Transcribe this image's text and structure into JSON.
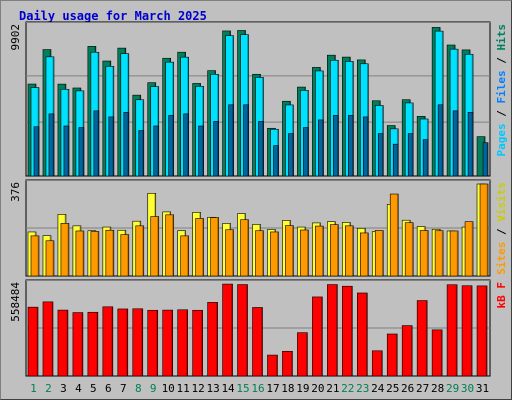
{
  "chart_data": {
    "type": "bar",
    "title": "Daily usage for March 2025",
    "days": [
      "1",
      "2",
      "3",
      "4",
      "5",
      "6",
      "7",
      "8",
      "9",
      "10",
      "11",
      "12",
      "13",
      "14",
      "15",
      "16",
      "17",
      "18",
      "19",
      "20",
      "21",
      "22",
      "23",
      "24",
      "25",
      "26",
      "27",
      "28",
      "29",
      "30",
      "31"
    ],
    "weekend_days": [
      "1",
      "2",
      "8",
      "9",
      "15",
      "16",
      "22",
      "23",
      "29",
      "30"
    ],
    "colors": {
      "pages": "#0066a0",
      "files": "#00e0ff",
      "hits": "#00805a",
      "sites": "#ff9900",
      "visits": "#ffff33",
      "kbf": "#ff0000",
      "weekday_label": "#000000",
      "weekend_label": "#00805a"
    },
    "panels": [
      {
        "name": "hits-files-pages",
        "ymax_label": "9902",
        "ymax": 9902,
        "legend": [
          {
            "text": "Pages",
            "color": "#00c8ff"
          },
          {
            "text": " / ",
            "color": "#000000"
          },
          {
            "text": "Files",
            "color": "#0080ff"
          },
          {
            "text": " / ",
            "color": "#000000"
          },
          {
            "text": "Hits",
            "color": "#008060"
          }
        ],
        "series": [
          {
            "name": "Hits",
            "values": [
              6071,
              8347,
              6066,
              5810,
              8559,
              7591,
              8443,
              5338,
              6162,
              7774,
              8173,
              6110,
              6957,
              9576,
              9607,
              6716,
              3151,
              4936,
              5870,
              7168,
              7976,
              7850,
              7664,
              4966,
              3332,
              5037,
              3940,
              9809,
              8647,
              8325,
              2600
            ]
          },
          {
            "name": "Files",
            "values": [
              5838,
              7867,
              5724,
              5620,
              8169,
              7239,
              8077,
              5033,
              5902,
              7516,
              7843,
              5918,
              6713,
              9266,
              9329,
              6507,
              3085,
              4691,
              5652,
              6936,
              7640,
              7564,
              7408,
              4654,
              3114,
              4824,
              3763,
              9563,
              8373,
              8036,
              0
            ]
          },
          {
            "name": "Pages",
            "values": [
              3250,
              4100,
              3300,
              3200,
              4300,
              3900,
              4200,
              3000,
              3300,
              4000,
              4100,
              3300,
              3600,
              4700,
              4700,
              3600,
              2000,
              2800,
              3200,
              3700,
              4000,
              4000,
              3900,
              2800,
              2100,
              2800,
              2400,
              4700,
              4300,
              4200,
              2200
            ]
          }
        ]
      },
      {
        "name": "visits-sites",
        "ymax_label": "376",
        "ymax": 376,
        "legend": [
          {
            "text": "Sites",
            "color": "#ff9900"
          },
          {
            "text": " / ",
            "color": "#000000"
          },
          {
            "text": "Visits",
            "color": "#cccc00"
          }
        ],
        "series": [
          {
            "name": "Visits",
            "values": [
              180,
              165,
              252,
              205,
              185,
              200,
              187,
              224,
              338,
              262,
              185,
              260,
              240,
              215,
              255,
              211,
              190,
              227,
              200,
              217,
              222,
              219,
              195,
              181,
              293,
              228,
              202,
              191,
              184,
              200,
              376
            ]
          },
          {
            "name": "Sites",
            "values": [
              164,
              144,
              215,
              184,
              182,
              187,
              169,
              205,
              243,
              250,
              164,
              235,
              239,
              189,
              230,
              185,
              180,
              206,
              188,
              204,
              210,
              205,
              176,
              186,
              335,
              218,
              186,
              185,
              184,
              222,
              376
            ]
          }
        ]
      },
      {
        "name": "kbf",
        "ymax_label": "558484",
        "ymax": 558484,
        "legend": [
          {
            "text": "kB F",
            "color": "#ff0000"
          }
        ],
        "series": [
          {
            "name": "kB F",
            "values": [
              418000,
              450000,
              400000,
              385000,
              387000,
              420000,
              407000,
              408000,
              399000,
              400000,
              402000,
              399000,
              447000,
              558000,
              555000,
              416000,
              127000,
              150000,
              263000,
              480000,
              555000,
              545000,
              504000,
              153000,
              255000,
              306000,
              458000,
              280000,
              554000,
              548000,
              547000
            ]
          }
        ]
      }
    ]
  }
}
